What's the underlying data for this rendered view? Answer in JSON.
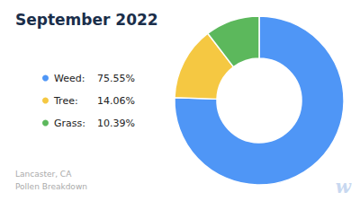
{
  "chart_data": {
    "type": "pie",
    "donut": true,
    "title": "September 2022",
    "subtitle": "Lancaster, CA\nPollen Breakdown",
    "annotations": [
      "w"
    ],
    "categories": [
      "Weed:",
      "Tree:",
      "Grass:"
    ],
    "values": [
      75.55,
      14.06,
      10.39
    ],
    "value_labels": [
      "75.55%",
      "14.06%",
      "10.39%"
    ],
    "colors": [
      "#4F96F6",
      "#F5C842",
      "#5CB85C"
    ],
    "legend": "left",
    "data_labels": false
  }
}
